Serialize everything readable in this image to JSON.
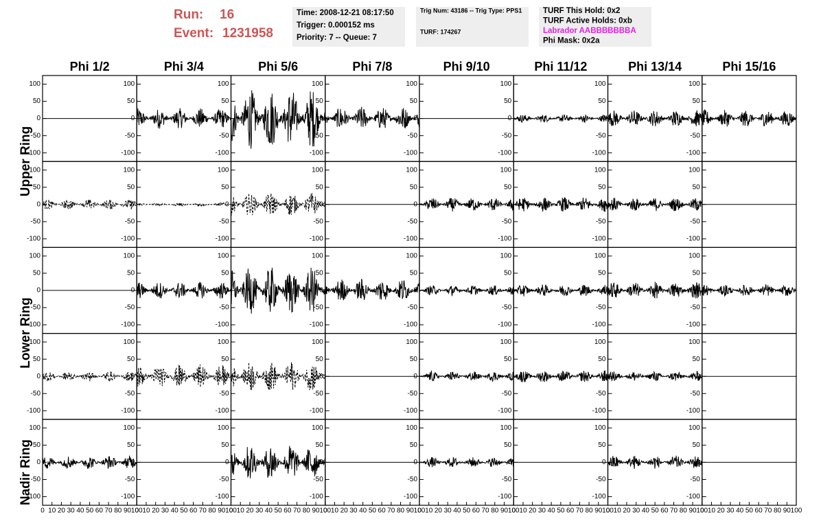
{
  "header": {
    "run_label": "Run:",
    "run": "16",
    "event_label": "Event:",
    "event": "1231958"
  },
  "info": [
    {
      "lines": [
        {
          "text": "Time: 2008-12-21 08:17:50"
        },
        {
          "text": "Trigger: 0.000152 ms"
        },
        {
          "text": "Priority: 7 -- Queue: 7"
        }
      ]
    },
    {
      "lines": [
        {
          "text": "Trig Num: 43186 -- Trig Type: PPS1"
        },
        {
          "text": "TURF: 174267"
        }
      ]
    },
    {
      "lines": [
        {
          "text": "TURF This Hold: 0x2"
        },
        {
          "text": "TURF Active Holds: 0xb"
        },
        {
          "text": "Labrador AABBBBBBBA",
          "color": "#e020e0"
        },
        {
          "text": "Phi Mask: 0x2a"
        }
      ]
    }
  ],
  "columns": [
    "Phi 1/2",
    "Phi 3/4",
    "Phi 5/6",
    "Phi 7/8",
    "Phi 9/10",
    "Phi 11/12",
    "Phi 13/14",
    "Phi 15/16"
  ],
  "ring_labels": [
    "Upper Ring",
    "Lower Ring",
    "Nadir Ring"
  ],
  "axes": {
    "ylim": [
      -125,
      125
    ],
    "yticks": [
      100,
      50,
      0,
      -50,
      -100
    ],
    "xlim": [
      0,
      100
    ],
    "xticks": [
      0,
      10,
      20,
      30,
      40,
      50,
      60,
      70,
      80,
      90,
      100
    ]
  },
  "panels": [
    [
      {
        "amp": 0
      },
      {
        "amp": 30
      },
      {
        "amp": 90
      },
      {
        "amp": 35
      },
      {
        "amp": 0
      },
      {
        "amp": 12
      },
      {
        "amp": 25
      },
      {
        "amp": 25
      }
    ],
    [
      {
        "amp": 15,
        "dashed": true
      },
      {
        "amp": 5,
        "dashed": true
      },
      {
        "amp": 35,
        "dashed": true
      },
      {
        "amp": 0
      },
      {
        "amp": 20
      },
      {
        "amp": 22
      },
      {
        "amp": 20
      },
      {
        "amp": 0
      }
    ],
    [
      {
        "amp": 0
      },
      {
        "amp": 25
      },
      {
        "amp": 70
      },
      {
        "amp": 35
      },
      {
        "amp": 15
      },
      {
        "amp": 18
      },
      {
        "amp": 25
      },
      {
        "amp": 18
      }
    ],
    [
      {
        "amp": 15,
        "dashed": true
      },
      {
        "amp": 35,
        "dashed": true
      },
      {
        "amp": 45,
        "dashed": true
      },
      {
        "amp": 0
      },
      {
        "amp": 15
      },
      {
        "amp": 18
      },
      {
        "amp": 15
      },
      {
        "amp": 0
      }
    ],
    [
      {
        "amp": 20
      },
      {
        "amp": 0
      },
      {
        "amp": 55
      },
      {
        "amp": 0
      },
      {
        "amp": 15
      },
      {
        "amp": 0
      },
      {
        "amp": 20
      },
      {
        "amp": 0
      }
    ]
  ]
}
